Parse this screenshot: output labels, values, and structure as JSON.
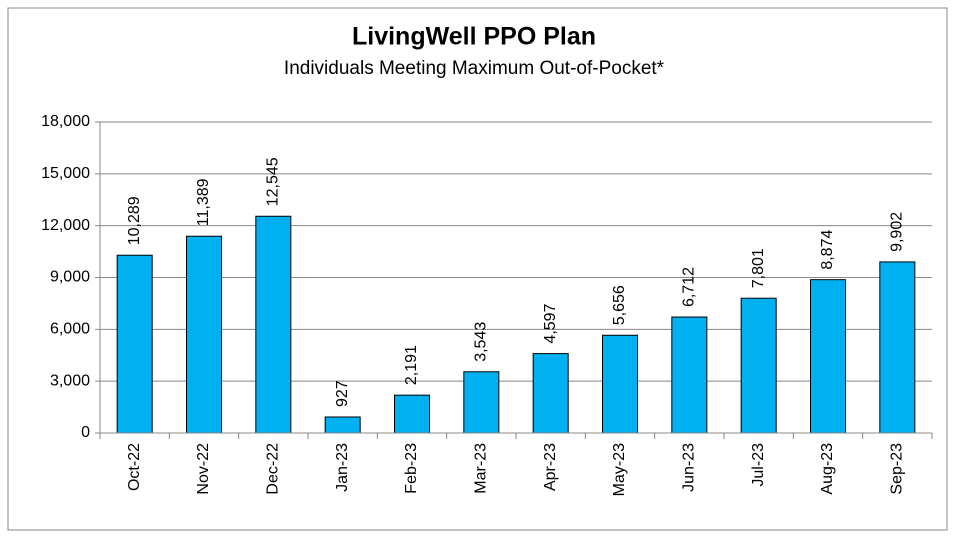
{
  "chart_data": {
    "type": "bar",
    "title": "LivingWell PPO Plan",
    "subtitle": "Individuals Meeting Maximum Out-of-Pocket*",
    "categories": [
      "Oct-22",
      "Nov-22",
      "Dec-22",
      "Jan-23",
      "Feb-23",
      "Mar-23",
      "Apr-23",
      "May-23",
      "Jun-23",
      "Jul-23",
      "Aug-23",
      "Sep-23"
    ],
    "values": [
      10289,
      11389,
      12545,
      927,
      2191,
      3543,
      4597,
      5656,
      6712,
      7801,
      8874,
      9902
    ],
    "value_labels": [
      "10,289",
      "11,389",
      "12,545",
      "927",
      "2,191",
      "3,543",
      "4,597",
      "5,656",
      "6,712",
      "7,801",
      "8,874",
      "9,902"
    ],
    "color": "#00b0f0",
    "ylim": [
      0,
      18000
    ],
    "yticks": [
      0,
      {
        "value": 3000,
        "label": "3,000"
      },
      {
        "value": 6000,
        "label": "6,000"
      },
      {
        "value": 9000,
        "label": "9,000"
      },
      {
        "value": 12000,
        "label": "12,000"
      },
      {
        "value": 15000,
        "label": "15,000"
      },
      {
        "value": 18000,
        "label": "18,000"
      }
    ],
    "grid": true
  }
}
